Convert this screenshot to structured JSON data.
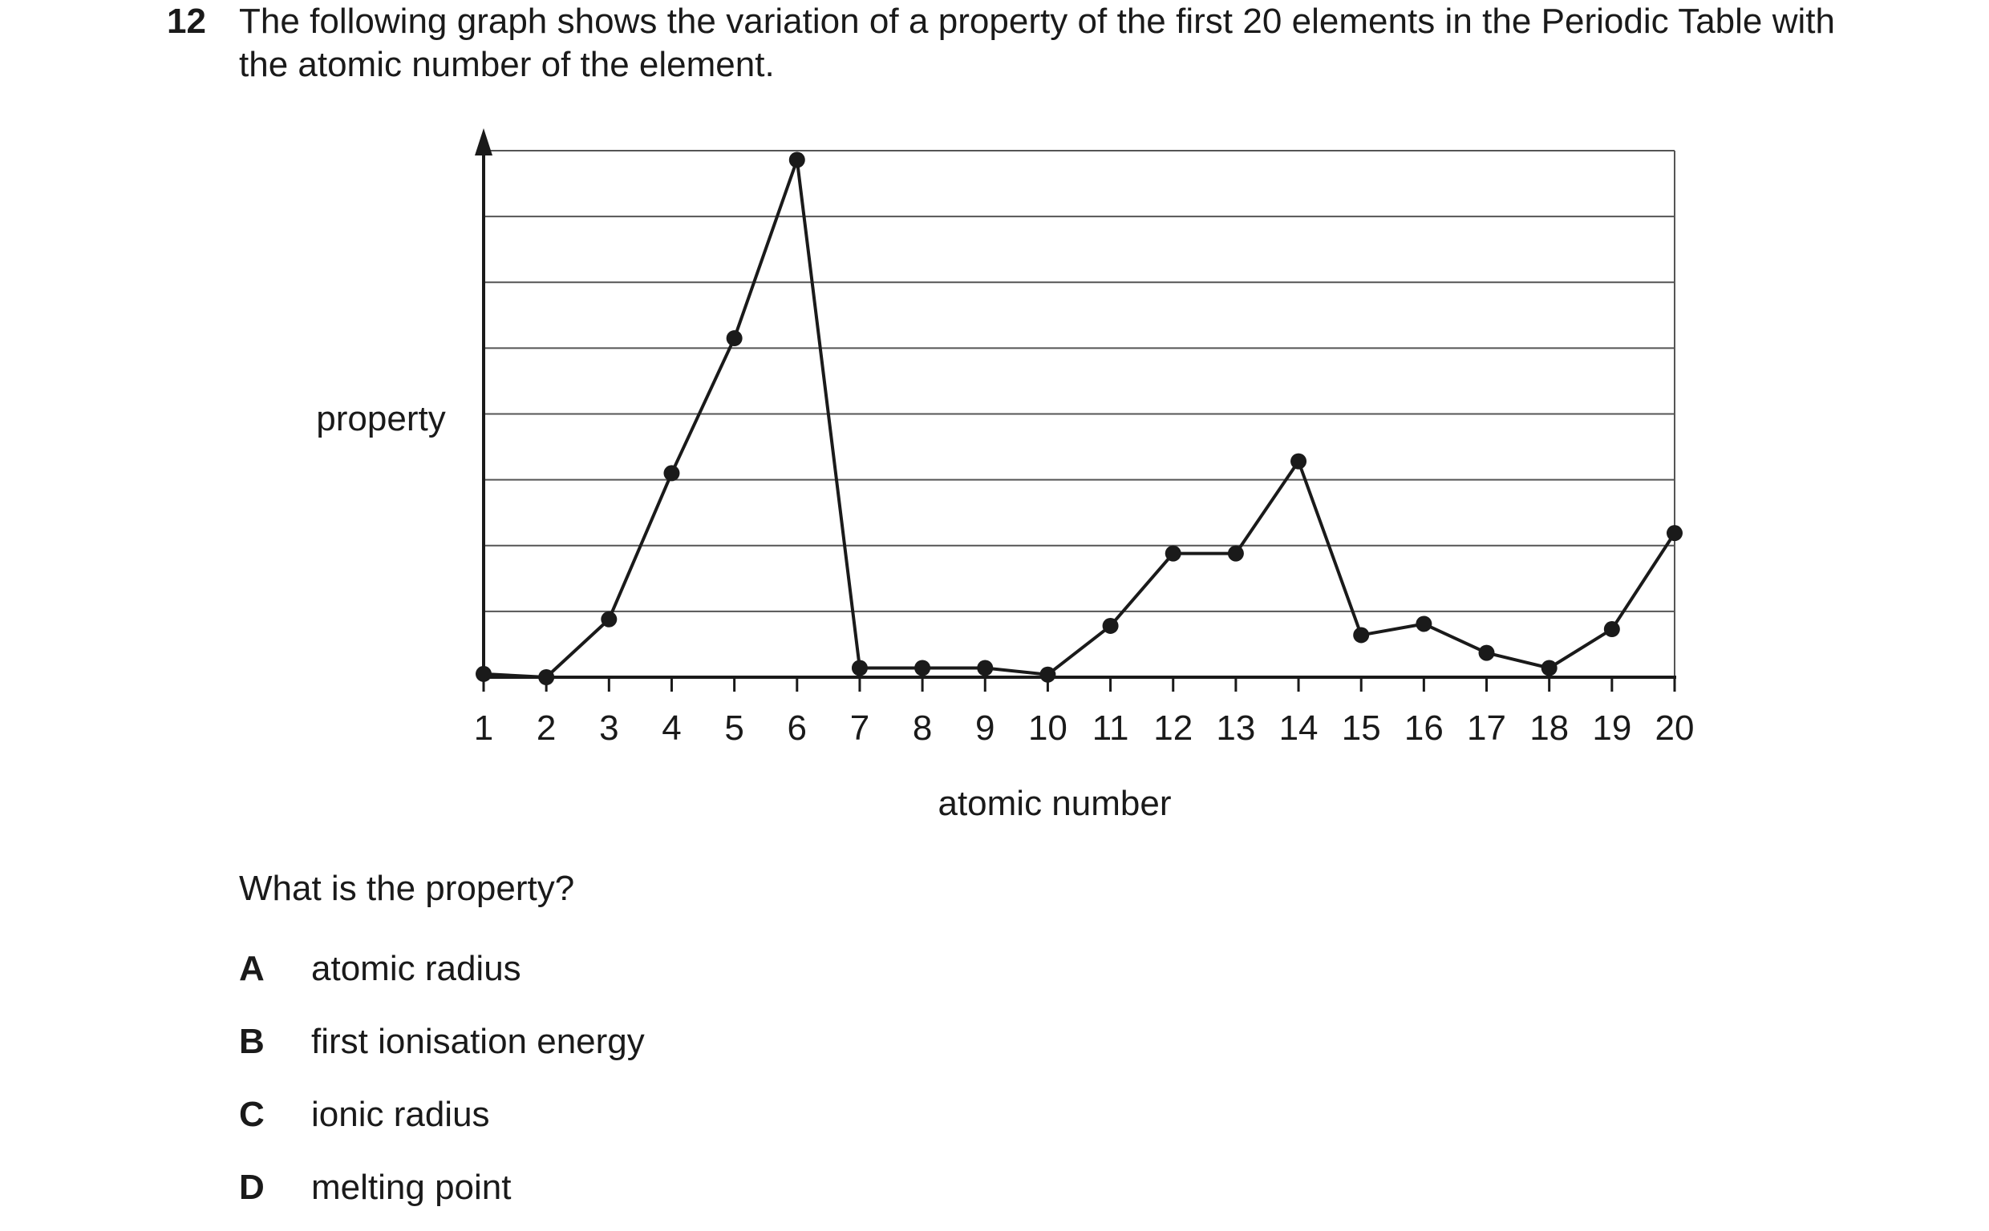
{
  "question": {
    "number": "12",
    "text": "The following graph shows the variation of a property of the first 20 elements in the Periodic Table with the atomic number of the element.",
    "prompt": "What is the property?",
    "options": [
      {
        "letter": "A",
        "text": "atomic radius"
      },
      {
        "letter": "B",
        "text": "first ionisation energy"
      },
      {
        "letter": "C",
        "text": "ionic radius"
      },
      {
        "letter": "D",
        "text": "melting point"
      }
    ]
  },
  "chart_data": {
    "type": "line",
    "xlabel": "atomic number",
    "ylabel": "property",
    "x": [
      1,
      2,
      3,
      4,
      5,
      6,
      7,
      8,
      9,
      10,
      11,
      12,
      13,
      14,
      15,
      16,
      17,
      18,
      19,
      20
    ],
    "series": [
      {
        "values": [
          0.05,
          0.0,
          0.88,
          3.1,
          5.15,
          7.86,
          0.14,
          0.14,
          0.14,
          0.04,
          0.78,
          1.88,
          1.88,
          3.28,
          0.64,
          0.81,
          0.37,
          0.14,
          0.73,
          2.19
        ]
      }
    ],
    "xlim": [
      1,
      20
    ],
    "ylim": [
      0,
      8
    ],
    "grid": true,
    "legend": "none",
    "colors": {
      "line": "#1a1a1a",
      "grid": "#555555"
    }
  }
}
